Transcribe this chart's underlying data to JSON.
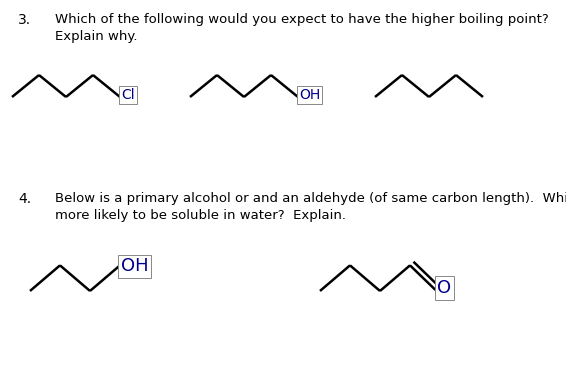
{
  "background_color": "#ffffff",
  "text_color": "#000000",
  "label_color": "#00008b",
  "q3_number": "3.",
  "q3_text_line1": "Which of the following would you expect to have the higher boiling point?",
  "q3_text_line2": "Explain why.",
  "q4_number": "4.",
  "q4_text_line1": "Below is a primary alcohol or and an aldehyde (of same carbon length).  Which is",
  "q4_text_line2": "more likely to be soluble in water?  Explain.",
  "font_size_number": 10,
  "font_size_text": 9.5,
  "font_size_label_q3": 10,
  "font_size_label_q4": 13,
  "line_color": "#000000",
  "line_width": 1.8,
  "figwidth": 5.66,
  "figheight": 3.66,
  "dpi": 100
}
